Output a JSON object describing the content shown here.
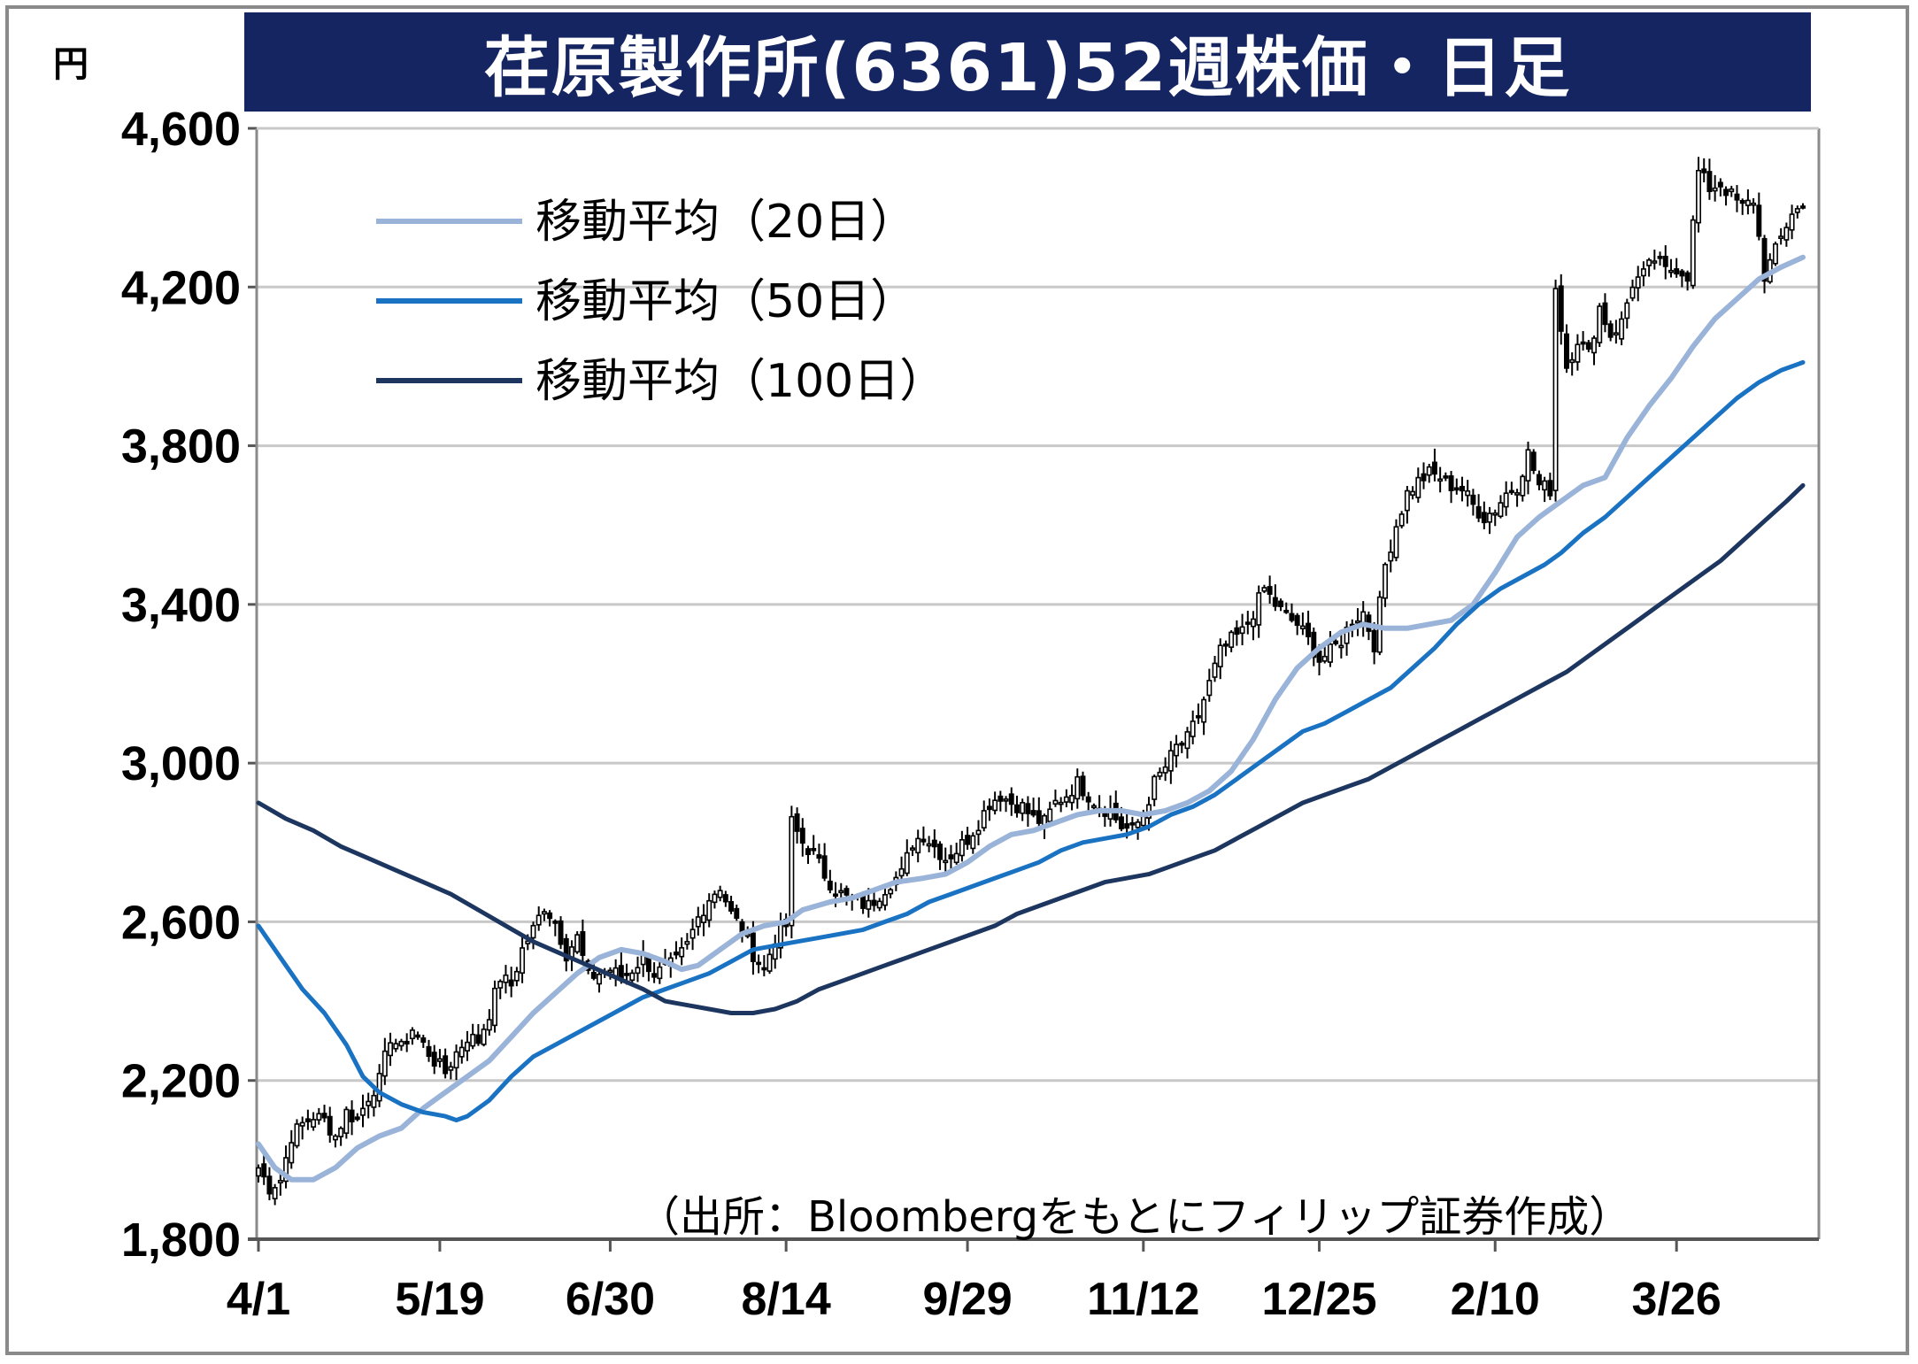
{
  "chart_data": {
    "type": "candlestick",
    "title": "荏原製作所(6361)52週株価・日足",
    "unit": "円",
    "source": "（出所：Bloombergをもとにフィリップ証券作成）",
    "ylim": [
      1800,
      4600
    ],
    "yticks": [
      "4,600",
      "4,200",
      "3,800",
      "3,400",
      "3,000",
      "2,600",
      "2,200",
      "1,800"
    ],
    "ytick_values": [
      4600,
      4200,
      3800,
      3400,
      3000,
      2600,
      2200,
      1800
    ],
    "xtick_labels": [
      "4/1",
      "5/19",
      "6/30",
      "8/14",
      "9/29",
      "11/12",
      "12/25",
      "2/10",
      "3/26"
    ],
    "xtick_index": [
      0,
      33,
      64,
      96,
      129,
      161,
      193,
      225,
      258
    ],
    "grid": true,
    "legend_position": "top-left",
    "series": [
      {
        "name": "移動平均（20日）",
        "color": "#9ab3d8",
        "points": [
          [
            0,
            2040
          ],
          [
            3,
            1980
          ],
          [
            6,
            1950
          ],
          [
            10,
            1950
          ],
          [
            14,
            1980
          ],
          [
            18,
            2030
          ],
          [
            22,
            2060
          ],
          [
            26,
            2080
          ],
          [
            30,
            2130
          ],
          [
            33,
            2160
          ],
          [
            38,
            2210
          ],
          [
            42,
            2250
          ],
          [
            46,
            2310
          ],
          [
            50,
            2370
          ],
          [
            54,
            2420
          ],
          [
            58,
            2470
          ],
          [
            62,
            2510
          ],
          [
            66,
            2530
          ],
          [
            70,
            2520
          ],
          [
            74,
            2500
          ],
          [
            77,
            2480
          ],
          [
            80,
            2490
          ],
          [
            84,
            2530
          ],
          [
            88,
            2570
          ],
          [
            92,
            2590
          ],
          [
            96,
            2600
          ],
          [
            99,
            2630
          ],
          [
            104,
            2650
          ],
          [
            108,
            2660
          ],
          [
            112,
            2680
          ],
          [
            116,
            2700
          ],
          [
            121,
            2710
          ],
          [
            125,
            2720
          ],
          [
            129,
            2750
          ],
          [
            133,
            2790
          ],
          [
            137,
            2820
          ],
          [
            141,
            2830
          ],
          [
            145,
            2850
          ],
          [
            149,
            2870
          ],
          [
            153,
            2880
          ],
          [
            157,
            2880
          ],
          [
            161,
            2870
          ],
          [
            165,
            2880
          ],
          [
            169,
            2900
          ],
          [
            173,
            2930
          ],
          [
            177,
            2980
          ],
          [
            181,
            3060
          ],
          [
            185,
            3160
          ],
          [
            189,
            3240
          ],
          [
            193,
            3290
          ],
          [
            197,
            3330
          ],
          [
            201,
            3350
          ],
          [
            205,
            3340
          ],
          [
            209,
            3340
          ],
          [
            213,
            3350
          ],
          [
            217,
            3360
          ],
          [
            221,
            3400
          ],
          [
            225,
            3480
          ],
          [
            229,
            3570
          ],
          [
            233,
            3620
          ],
          [
            237,
            3660
          ],
          [
            241,
            3700
          ],
          [
            245,
            3720
          ],
          [
            249,
            3820
          ],
          [
            253,
            3900
          ],
          [
            257,
            3970
          ],
          [
            261,
            4050
          ],
          [
            265,
            4120
          ],
          [
            269,
            4170
          ],
          [
            273,
            4220
          ],
          [
            277,
            4250
          ],
          [
            281,
            4275
          ]
        ]
      },
      {
        "name": "移動平均（50日）",
        "color": "#1a72c2",
        "points": [
          [
            0,
            2590
          ],
          [
            4,
            2510
          ],
          [
            8,
            2430
          ],
          [
            12,
            2370
          ],
          [
            16,
            2290
          ],
          [
            19,
            2210
          ],
          [
            22,
            2170
          ],
          [
            26,
            2140
          ],
          [
            30,
            2120
          ],
          [
            34,
            2110
          ],
          [
            36,
            2100
          ],
          [
            38,
            2110
          ],
          [
            42,
            2150
          ],
          [
            46,
            2210
          ],
          [
            50,
            2260
          ],
          [
            54,
            2290
          ],
          [
            58,
            2320
          ],
          [
            62,
            2350
          ],
          [
            66,
            2380
          ],
          [
            70,
            2410
          ],
          [
            74,
            2430
          ],
          [
            78,
            2450
          ],
          [
            82,
            2470
          ],
          [
            86,
            2500
          ],
          [
            90,
            2530
          ],
          [
            94,
            2540
          ],
          [
            98,
            2550
          ],
          [
            102,
            2560
          ],
          [
            106,
            2570
          ],
          [
            110,
            2580
          ],
          [
            114,
            2600
          ],
          [
            118,
            2620
          ],
          [
            122,
            2650
          ],
          [
            126,
            2670
          ],
          [
            130,
            2690
          ],
          [
            134,
            2710
          ],
          [
            138,
            2730
          ],
          [
            142,
            2750
          ],
          [
            146,
            2780
          ],
          [
            150,
            2800
          ],
          [
            154,
            2810
          ],
          [
            158,
            2820
          ],
          [
            162,
            2840
          ],
          [
            166,
            2870
          ],
          [
            170,
            2890
          ],
          [
            174,
            2920
          ],
          [
            178,
            2960
          ],
          [
            182,
            3000
          ],
          [
            186,
            3040
          ],
          [
            190,
            3080
          ],
          [
            194,
            3100
          ],
          [
            198,
            3130
          ],
          [
            202,
            3160
          ],
          [
            206,
            3190
          ],
          [
            210,
            3240
          ],
          [
            214,
            3290
          ],
          [
            218,
            3350
          ],
          [
            222,
            3400
          ],
          [
            226,
            3440
          ],
          [
            230,
            3470
          ],
          [
            234,
            3500
          ],
          [
            237,
            3530
          ],
          [
            241,
            3580
          ],
          [
            245,
            3620
          ],
          [
            249,
            3670
          ],
          [
            253,
            3720
          ],
          [
            257,
            3770
          ],
          [
            261,
            3820
          ],
          [
            265,
            3870
          ],
          [
            269,
            3920
          ],
          [
            273,
            3960
          ],
          [
            277,
            3990
          ],
          [
            281,
            4010
          ]
        ]
      },
      {
        "name": "移動平均（100日）",
        "color": "#1d3660",
        "points": [
          [
            0,
            2900
          ],
          [
            5,
            2860
          ],
          [
            10,
            2830
          ],
          [
            15,
            2790
          ],
          [
            20,
            2760
          ],
          [
            25,
            2730
          ],
          [
            30,
            2700
          ],
          [
            35,
            2670
          ],
          [
            40,
            2630
          ],
          [
            45,
            2590
          ],
          [
            50,
            2550
          ],
          [
            55,
            2520
          ],
          [
            60,
            2490
          ],
          [
            65,
            2460
          ],
          [
            70,
            2430
          ],
          [
            74,
            2400
          ],
          [
            78,
            2390
          ],
          [
            82,
            2380
          ],
          [
            86,
            2370
          ],
          [
            90,
            2370
          ],
          [
            94,
            2380
          ],
          [
            98,
            2400
          ],
          [
            102,
            2430
          ],
          [
            106,
            2450
          ],
          [
            110,
            2470
          ],
          [
            114,
            2490
          ],
          [
            118,
            2510
          ],
          [
            122,
            2530
          ],
          [
            126,
            2550
          ],
          [
            130,
            2570
          ],
          [
            134,
            2590
          ],
          [
            138,
            2620
          ],
          [
            142,
            2640
          ],
          [
            146,
            2660
          ],
          [
            150,
            2680
          ],
          [
            154,
            2700
          ],
          [
            158,
            2710
          ],
          [
            162,
            2720
          ],
          [
            166,
            2740
          ],
          [
            170,
            2760
          ],
          [
            174,
            2780
          ],
          [
            178,
            2810
          ],
          [
            182,
            2840
          ],
          [
            186,
            2870
          ],
          [
            190,
            2900
          ],
          [
            194,
            2920
          ],
          [
            198,
            2940
          ],
          [
            202,
            2960
          ],
          [
            206,
            2990
          ],
          [
            210,
            3020
          ],
          [
            214,
            3050
          ],
          [
            218,
            3080
          ],
          [
            222,
            3110
          ],
          [
            226,
            3140
          ],
          [
            230,
            3170
          ],
          [
            234,
            3200
          ],
          [
            238,
            3230
          ],
          [
            242,
            3270
          ],
          [
            246,
            3310
          ],
          [
            250,
            3350
          ],
          [
            254,
            3390
          ],
          [
            258,
            3430
          ],
          [
            262,
            3470
          ],
          [
            266,
            3510
          ],
          [
            270,
            3560
          ],
          [
            274,
            3610
          ],
          [
            278,
            3660
          ],
          [
            281,
            3700
          ]
        ]
      }
    ],
    "price_anchors": [
      [
        0,
        1980
      ],
      [
        2,
        1930
      ],
      [
        4,
        1950
      ],
      [
        6,
        2060
      ],
      [
        8,
        2090
      ],
      [
        10,
        2110
      ],
      [
        12,
        2100
      ],
      [
        14,
        2060
      ],
      [
        16,
        2120
      ],
      [
        18,
        2100
      ],
      [
        20,
        2160
      ],
      [
        22,
        2200
      ],
      [
        24,
        2310
      ],
      [
        26,
        2280
      ],
      [
        28,
        2330
      ],
      [
        30,
        2290
      ],
      [
        32,
        2250
      ],
      [
        34,
        2220
      ],
      [
        36,
        2270
      ],
      [
        38,
        2310
      ],
      [
        40,
        2300
      ],
      [
        42,
        2370
      ],
      [
        44,
        2460
      ],
      [
        46,
        2440
      ],
      [
        48,
        2530
      ],
      [
        50,
        2580
      ],
      [
        52,
        2640
      ],
      [
        54,
        2600
      ],
      [
        56,
        2520
      ],
      [
        58,
        2560
      ],
      [
        60,
        2460
      ],
      [
        62,
        2470
      ],
      [
        64,
        2480
      ],
      [
        66,
        2460
      ],
      [
        68,
        2480
      ],
      [
        70,
        2510
      ],
      [
        72,
        2470
      ],
      [
        74,
        2480
      ],
      [
        76,
        2500
      ],
      [
        78,
        2540
      ],
      [
        80,
        2610
      ],
      [
        82,
        2660
      ],
      [
        84,
        2690
      ],
      [
        86,
        2620
      ],
      [
        88,
        2580
      ],
      [
        90,
        2520
      ],
      [
        92,
        2480
      ],
      [
        94,
        2560
      ],
      [
        96,
        2590
      ],
      [
        97,
        2850
      ],
      [
        99,
        2800
      ],
      [
        101,
        2770
      ],
      [
        103,
        2720
      ],
      [
        105,
        2680
      ],
      [
        107,
        2660
      ],
      [
        109,
        2650
      ],
      [
        111,
        2640
      ],
      [
        113,
        2670
      ],
      [
        115,
        2700
      ],
      [
        117,
        2720
      ],
      [
        119,
        2800
      ],
      [
        121,
        2820
      ],
      [
        123,
        2790
      ],
      [
        125,
        2760
      ],
      [
        127,
        2780
      ],
      [
        129,
        2810
      ],
      [
        131,
        2850
      ],
      [
        133,
        2900
      ],
      [
        135,
        2920
      ],
      [
        137,
        2900
      ],
      [
        139,
        2890
      ],
      [
        141,
        2860
      ],
      [
        143,
        2850
      ],
      [
        145,
        2900
      ],
      [
        147,
        2920
      ],
      [
        149,
        2950
      ],
      [
        151,
        2920
      ],
      [
        153,
        2890
      ],
      [
        155,
        2880
      ],
      [
        157,
        2840
      ],
      [
        159,
        2830
      ],
      [
        161,
        2870
      ],
      [
        163,
        2950
      ],
      [
        165,
        2990
      ],
      [
        167,
        3040
      ],
      [
        169,
        3060
      ],
      [
        171,
        3120
      ],
      [
        173,
        3200
      ],
      [
        175,
        3280
      ],
      [
        177,
        3310
      ],
      [
        179,
        3330
      ],
      [
        181,
        3380
      ],
      [
        183,
        3440
      ],
      [
        185,
        3400
      ],
      [
        187,
        3370
      ],
      [
        189,
        3350
      ],
      [
        191,
        3310
      ],
      [
        193,
        3260
      ],
      [
        195,
        3280
      ],
      [
        197,
        3310
      ],
      [
        199,
        3360
      ],
      [
        201,
        3380
      ],
      [
        203,
        3300
      ],
      [
        205,
        3500
      ],
      [
        207,
        3600
      ],
      [
        209,
        3680
      ],
      [
        211,
        3710
      ],
      [
        213,
        3730
      ],
      [
        215,
        3720
      ],
      [
        217,
        3700
      ],
      [
        219,
        3690
      ],
      [
        221,
        3650
      ],
      [
        223,
        3620
      ],
      [
        225,
        3640
      ],
      [
        227,
        3680
      ],
      [
        229,
        3700
      ],
      [
        231,
        3780
      ],
      [
        233,
        3700
      ],
      [
        235,
        3690
      ],
      [
        236,
        4200
      ],
      [
        238,
        4000
      ],
      [
        240,
        4070
      ],
      [
        242,
        4030
      ],
      [
        244,
        4150
      ],
      [
        246,
        4080
      ],
      [
        248,
        4110
      ],
      [
        250,
        4210
      ],
      [
        252,
        4230
      ],
      [
        254,
        4270
      ],
      [
        256,
        4240
      ],
      [
        258,
        4250
      ],
      [
        260,
        4230
      ],
      [
        262,
        4490
      ],
      [
        264,
        4450
      ],
      [
        266,
        4460
      ],
      [
        268,
        4430
      ],
      [
        270,
        4400
      ],
      [
        272,
        4420
      ],
      [
        274,
        4230
      ],
      [
        276,
        4290
      ],
      [
        279,
        4390
      ],
      [
        281,
        4400
      ]
    ],
    "n_points": 282
  }
}
